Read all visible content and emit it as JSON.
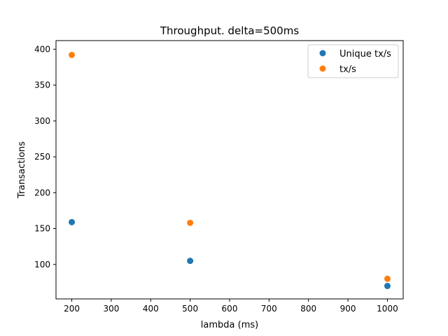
{
  "chart_data": {
    "type": "scatter",
    "title": "Throughput. delta=500ms",
    "xlabel": "lambda (ms)",
    "ylabel": "Transactions",
    "xlim": [
      160,
      1040
    ],
    "ylim": [
      52,
      412
    ],
    "xticks": [
      200,
      300,
      400,
      500,
      600,
      700,
      800,
      900,
      1000
    ],
    "yticks": [
      100,
      150,
      200,
      250,
      300,
      350,
      400
    ],
    "grid": false,
    "legend_position": "top-right",
    "series": [
      {
        "name": "Unique tx/s",
        "color": "#1f77b4",
        "x": [
          200,
          500,
          1000
        ],
        "y": [
          159,
          105,
          70
        ]
      },
      {
        "name": "tx/s",
        "color": "#ff7f0e",
        "x": [
          200,
          500,
          1000
        ],
        "y": [
          392,
          158,
          80
        ]
      }
    ]
  }
}
